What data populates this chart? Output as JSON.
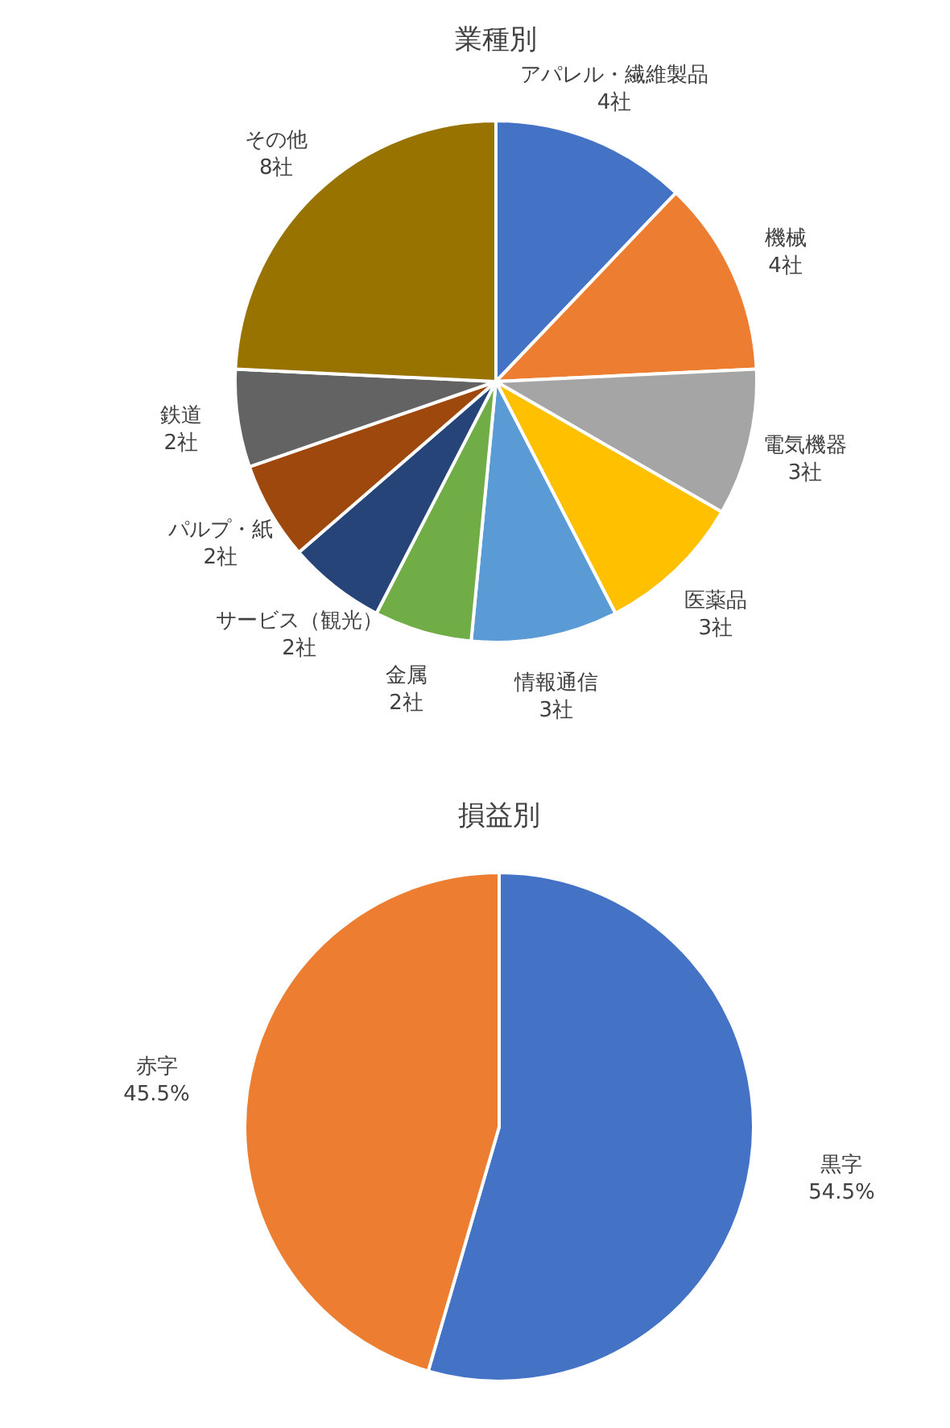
{
  "chart_data": [
    {
      "type": "pie",
      "title": "業種別",
      "categories": [
        "アパレル・繊維製品",
        "機械",
        "電気機器",
        "医薬品",
        "情報通信",
        "金属",
        "サービス（観光）",
        "パルプ・紙",
        "鉄道",
        "その他"
      ],
      "values": [
        4,
        4,
        3,
        3,
        3,
        2,
        2,
        2,
        2,
        8
      ],
      "value_labels": [
        "4社",
        "4社",
        "3社",
        "3社",
        "3社",
        "2社",
        "2社",
        "2社",
        "2社",
        "8社"
      ],
      "colors": [
        "#4472c4",
        "#ed7d31",
        "#a5a5a5",
        "#ffc000",
        "#5b9bd5",
        "#70ad47",
        "#264478",
        "#9e480e",
        "#636363",
        "#997300"
      ]
    },
    {
      "type": "pie",
      "title": "損益別",
      "categories": [
        "黒字",
        "赤字"
      ],
      "values": [
        54.5,
        45.5
      ],
      "value_labels": [
        "54.5%",
        "45.5%"
      ],
      "colors": [
        "#4472c4",
        "#ed7d31"
      ]
    }
  ]
}
